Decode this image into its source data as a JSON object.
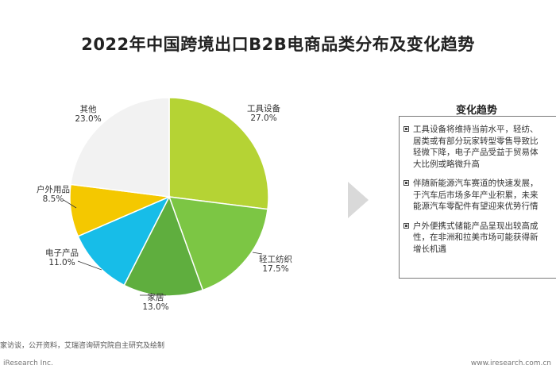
{
  "title": "2022年中国跨境出口B2B电商品类分布及变化趋势",
  "chart_data": {
    "type": "pie",
    "title": "2022年中国跨境出口B2B电商品类分布及变化趋势",
    "slices": [
      {
        "name": "工具设备",
        "value": 27.0,
        "label": "27.0%",
        "color": "#b5d334"
      },
      {
        "name": "轻工纺织",
        "value": 17.5,
        "label": "17.5%",
        "color": "#7cc644"
      },
      {
        "name": "家居",
        "value": 13.0,
        "label": "13.0%",
        "color": "#5fae3e"
      },
      {
        "name": "电子产品",
        "value": 11.0,
        "label": "11.0%",
        "color": "#17bde8"
      },
      {
        "name": "户外用品",
        "value": 8.5,
        "label": "8.5%",
        "color": "#f4c800"
      },
      {
        "name": "其他",
        "value": 23.0,
        "label": "23.0%",
        "color": "#f2f2f2"
      }
    ]
  },
  "trend_panel": {
    "heading": "变化趋势",
    "items": [
      {
        "lines": [
          "工具设备将维持当前水平，轻纺、",
          "居类或有部分玩家转型零售导致比",
          "轻微下降，电子产品受益于贸易体",
          "大比例或略微升高"
        ]
      },
      {
        "lines": [
          "伴随新能源汽车赛道的快速发展，",
          "于汽车后市场多年产业积累，未来",
          "能源汽车零配件有望迎来优势行情"
        ]
      },
      {
        "lines": [
          "户外便携式储能产品呈现出较高成",
          "性，在非洲和拉美市场可能获得新",
          "增长机遇"
        ]
      }
    ]
  },
  "source": "家访谈，公开资料，艾瑞咨询研究院自主研究及绘制",
  "footer": {
    "left": "iResearch Inc.",
    "right": "www.iresearch.com.cn"
  }
}
